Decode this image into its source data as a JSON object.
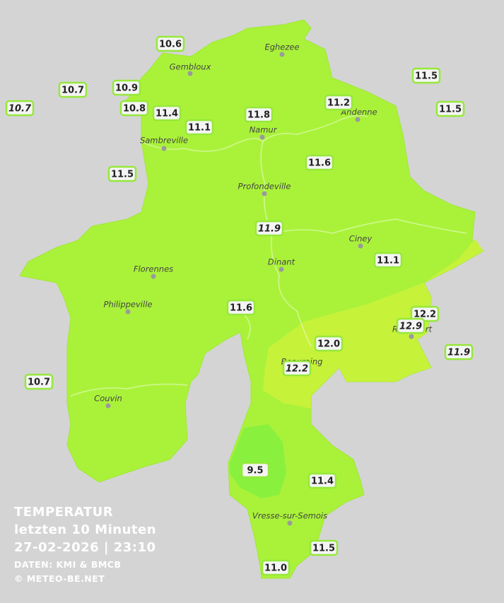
{
  "title": {
    "lines": [
      "TEMPERATUR",
      "letzten 10 Minuten",
      "27-02-2026  |  23:10"
    ],
    "credits": [
      "DATEN: KMI & BMCB",
      "© METEO-BE.NET"
    ]
  },
  "cities": [
    "Eghezee",
    "Gembloux",
    "Andenne",
    "Namur",
    "Sambreville",
    "Profondeville",
    "Ciney",
    "Dinant",
    "Florennes",
    "Philippeville",
    "Beauraing",
    "Rochefort",
    "Couvin",
    "Vresse-sur-Semois"
  ],
  "readings": [
    {
      "text": "10.6",
      "italic": false
    },
    {
      "text": "10.7",
      "italic": false
    },
    {
      "text": "10.9",
      "italic": false
    },
    {
      "text": "10.7",
      "italic": true
    },
    {
      "text": "10.8",
      "italic": false
    },
    {
      "text": "11.4",
      "italic": false
    },
    {
      "text": "11.1",
      "italic": false
    },
    {
      "text": "11.8",
      "italic": false
    },
    {
      "text": "11.2",
      "italic": false
    },
    {
      "text": "11.5",
      "italic": false
    },
    {
      "text": "11.5",
      "italic": false
    },
    {
      "text": "11.5",
      "italic": false
    },
    {
      "text": "11.6",
      "italic": false
    },
    {
      "text": "11.9",
      "italic": true
    },
    {
      "text": "11.1",
      "italic": false
    },
    {
      "text": "11.6",
      "italic": false
    },
    {
      "text": "12.2",
      "italic": false
    },
    {
      "text": "12.9",
      "italic": true
    },
    {
      "text": "12.0",
      "italic": false
    },
    {
      "text": "12.2",
      "italic": true
    },
    {
      "text": "11.9",
      "italic": true
    },
    {
      "text": "10.7",
      "italic": false
    },
    {
      "text": "9.5",
      "italic": false
    },
    {
      "text": "11.4",
      "italic": false
    },
    {
      "text": "11.5",
      "italic": false
    },
    {
      "text": "11.0",
      "italic": false
    }
  ]
}
